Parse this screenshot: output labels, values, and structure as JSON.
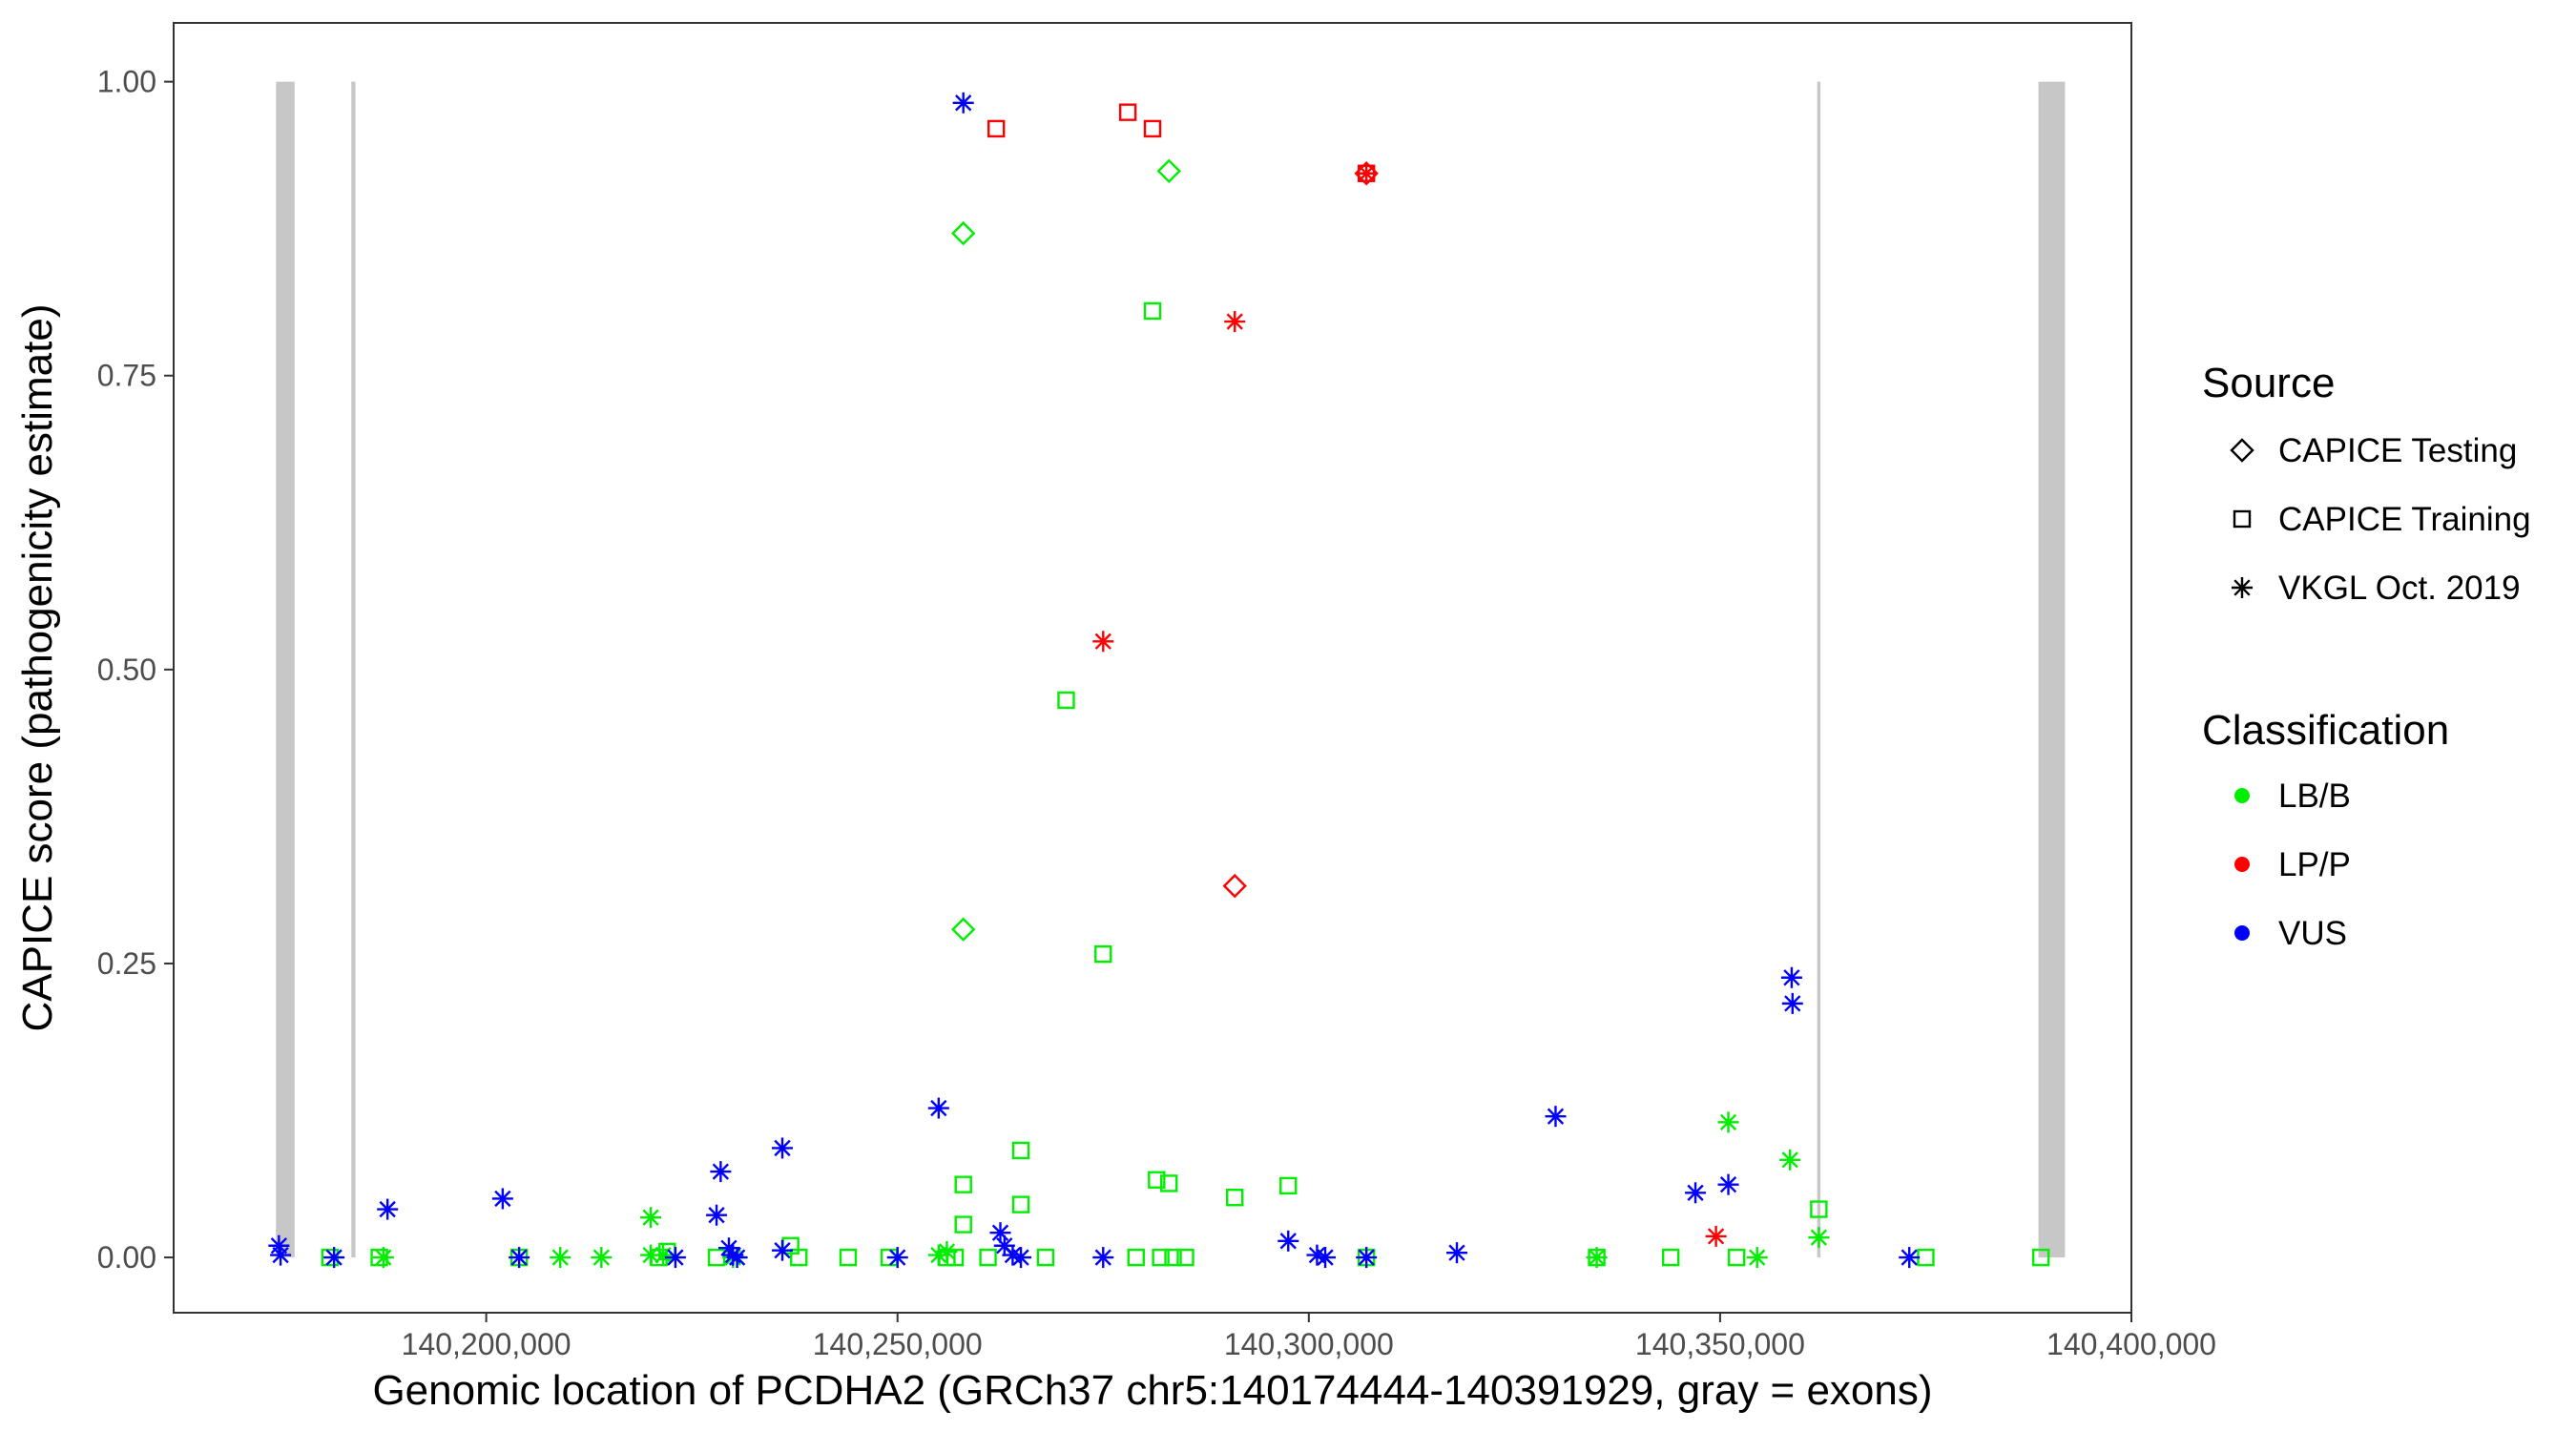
{
  "chart_data": {
    "type": "scatter",
    "title": "",
    "xlabel": "Genomic location of PCDHA2 (GRCh37 chr5:140174444-140391929, gray = exons)",
    "ylabel": "CAPICE score (pathogenicity estimate)",
    "xlim": [
      140162000,
      140400000
    ],
    "ylim": [
      -0.047,
      1.05
    ],
    "x_ticks": [
      140200000,
      140250000,
      140300000,
      140350000,
      140400000
    ],
    "x_tick_labels": [
      "140,200,000",
      "140,250,000",
      "140,300,000",
      "140,350,000",
      "140,400,000"
    ],
    "y_ticks": [
      0,
      0.25,
      0.5,
      0.75,
      1
    ],
    "y_tick_labels": [
      "0.00",
      "0.25",
      "0.50",
      "0.75",
      "1.00"
    ],
    "grid": false,
    "exons": [
      [
        140174444,
        140176700
      ],
      [
        140183600,
        140184100
      ],
      [
        140361800,
        140362200
      ],
      [
        140388700,
        140391929
      ]
    ],
    "legend_position": "right",
    "legends": {
      "source": {
        "title": "Source",
        "entries": [
          {
            "key": "CAPICE Testing",
            "label": "CAPICE Testing",
            "shape": "diamond"
          },
          {
            "key": "CAPICE Training",
            "label": "CAPICE Training",
            "shape": "square"
          },
          {
            "key": "VKGL Oct. 2019",
            "label": "VKGL Oct. 2019",
            "shape": "asterisk"
          }
        ]
      },
      "classification": {
        "title": "Classification",
        "entries": [
          {
            "key": "LB/B",
            "label": "LB/B",
            "color": "#00ee00"
          },
          {
            "key": "LP/P",
            "label": "LP/P",
            "color": "#ff0000"
          },
          {
            "key": "VUS",
            "label": "VUS",
            "color": "#0000ff"
          }
        ]
      }
    },
    "series": [
      {
        "source": "CAPICE Testing",
        "class": "LB/B",
        "points": [
          [
            140258000,
            0.871
          ],
          [
            140283000,
            0.924
          ],
          [
            140258000,
            0.279
          ]
        ]
      },
      {
        "source": "CAPICE Testing",
        "class": "LP/P",
        "points": [
          [
            140291000,
            0.316
          ],
          [
            140307000,
            0.922
          ]
        ]
      },
      {
        "source": "CAPICE Training",
        "class": "LP/P",
        "points": [
          [
            140262000,
            0.96
          ],
          [
            140278000,
            0.974
          ],
          [
            140281000,
            0.96
          ],
          [
            140307000,
            0.922
          ]
        ]
      },
      {
        "source": "CAPICE Training",
        "class": "LB/B",
        "points": [
          [
            140181000,
            0
          ],
          [
            140187000,
            0
          ],
          [
            140204000,
            0
          ],
          [
            140221000,
            0
          ],
          [
            140222000,
            0.005
          ],
          [
            140228000,
            0
          ],
          [
            140237000,
            0.01
          ],
          [
            140238000,
            0
          ],
          [
            140244000,
            0
          ],
          [
            140249000,
            0
          ],
          [
            140256000,
            0
          ],
          [
            140257000,
            0
          ],
          [
            140258000,
            0.028
          ],
          [
            140258000,
            0.062
          ],
          [
            140261000,
            0
          ],
          [
            140265000,
            0.091
          ],
          [
            140265000,
            0.045
          ],
          [
            140268000,
            0
          ],
          [
            140270500,
            0.474
          ],
          [
            140275000,
            0.258
          ],
          [
            140279000,
            0
          ],
          [
            140281000,
            0.805
          ],
          [
            140281500,
            0.066
          ],
          [
            140282000,
            0
          ],
          [
            140283000,
            0.063
          ],
          [
            140283500,
            0
          ],
          [
            140285000,
            0
          ],
          [
            140291000,
            0.051
          ],
          [
            140297500,
            0.061
          ],
          [
            140307000,
            0
          ],
          [
            140335000,
            0
          ],
          [
            140344000,
            0
          ],
          [
            140352000,
            0
          ],
          [
            140362000,
            0.041
          ],
          [
            140375000,
            0
          ],
          [
            140389000,
            0
          ]
        ]
      },
      {
        "source": "VKGL Oct. 2019",
        "class": "LB/B",
        "points": [
          [
            140187500,
            0
          ],
          [
            140209000,
            0
          ],
          [
            140214000,
            0
          ],
          [
            140220000,
            0.034
          ],
          [
            140220000,
            0.002
          ],
          [
            140221500,
            0.002
          ],
          [
            140230000,
            0
          ],
          [
            140255000,
            0.002
          ],
          [
            140256000,
            0.005
          ],
          [
            140335000,
            0
          ],
          [
            140351000,
            0.115
          ],
          [
            140354500,
            0
          ],
          [
            140358500,
            0.083
          ],
          [
            140362000,
            0.017
          ]
        ]
      },
      {
        "source": "VKGL Oct. 2019",
        "class": "LP/P",
        "points": [
          [
            140275000,
            0.524
          ],
          [
            140291000,
            0.796
          ],
          [
            140307000,
            0.922
          ],
          [
            140349500,
            0.018
          ]
        ]
      },
      {
        "source": "VKGL Oct. 2019",
        "class": "VUS",
        "points": [
          [
            140174800,
            0.01
          ],
          [
            140175000,
            0.002
          ],
          [
            140181500,
            0
          ],
          [
            140188000,
            0.041
          ],
          [
            140202000,
            0.05
          ],
          [
            140204000,
            0
          ],
          [
            140223000,
            0
          ],
          [
            140228000,
            0.036
          ],
          [
            140228500,
            0.073
          ],
          [
            140229500,
            0.008
          ],
          [
            140230000,
            0.002
          ],
          [
            140230500,
            0
          ],
          [
            140236000,
            0.093
          ],
          [
            140236000,
            0.006
          ],
          [
            140250000,
            0
          ],
          [
            140255000,
            0.127
          ],
          [
            140258000,
            0.982
          ],
          [
            140262500,
            0.021
          ],
          [
            140263000,
            0.01
          ],
          [
            140264000,
            0.002
          ],
          [
            140265000,
            0
          ],
          [
            140275000,
            0
          ],
          [
            140297500,
            0.014
          ],
          [
            140301000,
            0.002
          ],
          [
            140302000,
            0
          ],
          [
            140307000,
            0
          ],
          [
            140318000,
            0.004
          ],
          [
            140330000,
            0.12
          ],
          [
            140347000,
            0.055
          ],
          [
            140351000,
            0.062
          ],
          [
            140358700,
            0.238
          ],
          [
            140358800,
            0.216
          ],
          [
            140373000,
            0
          ]
        ]
      }
    ]
  }
}
